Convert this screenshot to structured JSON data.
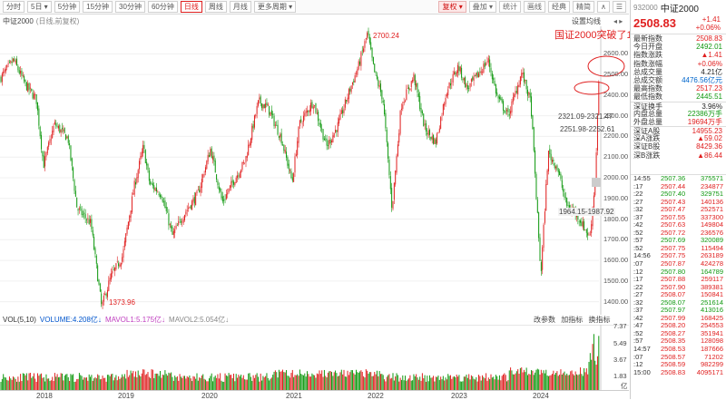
{
  "toolbar": {
    "left_buttons": [
      "分时",
      "5日 ▾",
      "5分钟",
      "15分钟",
      "30分钟",
      "60分钟",
      "日线",
      "周线",
      "月线",
      "更多周期 ▾"
    ],
    "active_index": 6,
    "right_buttons": [
      "复权 ▾",
      "叠加 ▾",
      "统计",
      "画线",
      "经典",
      "精简",
      "∧",
      "☰"
    ]
  },
  "chart_header": {
    "name": "中证2000",
    "mode": "(日线,前复权)",
    "settings": "设置均线",
    "arrows": "◂ ▸"
  },
  "annotation": "国证2000突破了10月上旬的高点",
  "price_labels": {
    "high": "2700.24",
    "low": "1373.96",
    "range1": "2321.09-2321.47",
    "range2": "2251.98-2252.61",
    "range3": "1964.15-1987.92"
  },
  "y_axis": [
    "2600.00",
    "2500.00",
    "2400.00",
    "2300.00",
    "2200.00",
    "2100.00",
    "2000.00",
    "1900.00",
    "1800.00",
    "1700.00",
    "1600.00",
    "1500.00",
    "1400.00"
  ],
  "volume": {
    "label": "VOL(5,10)",
    "volume": "VOLUME:4.208亿↓",
    "ma1": "MAVOL1:5.175亿↓",
    "ma2": "MAVOL2:5.054亿↓",
    "tools": [
      "改参数",
      "加指标",
      "换指标"
    ],
    "y_axis": [
      "7.37",
      "5.49",
      "3.67",
      "1.83"
    ],
    "unit": "亿"
  },
  "x_axis": [
    "2018",
    "2019",
    "2020",
    "2021",
    "2022",
    "2023",
    "2024"
  ],
  "quote": {
    "code": "932000",
    "name": "中证2000",
    "price": "2508.83",
    "change": "+1.41",
    "change_pct": "+0.06%",
    "fields": [
      {
        "k": "最新指数",
        "v": "2508.83",
        "c": "red"
      },
      {
        "k": "今日开盘",
        "v": "2492.01",
        "c": "green"
      },
      {
        "k": "指数涨跌",
        "v": "▲1.41",
        "c": "red"
      },
      {
        "k": "指数涨幅",
        "v": "+0.06%",
        "c": "red"
      },
      {
        "k": "总成交量",
        "v": "4.21亿",
        "c": "dark"
      },
      {
        "k": "总成交额",
        "v": "4476.56亿元",
        "c": "blue"
      },
      {
        "k": "最高指数",
        "v": "2517.23",
        "c": "red"
      },
      {
        "k": "最低指数",
        "v": "2445.51",
        "c": "green"
      },
      {
        "k": "深证换手",
        "v": "3.96%",
        "c": "dark"
      },
      {
        "k": "内盘总量",
        "v": "22386万手",
        "c": "green"
      },
      {
        "k": "外盘总量",
        "v": "19694万手",
        "c": "red"
      },
      {
        "k": "深证A股",
        "v": "14955.23",
        "c": "red"
      },
      {
        "k": "深A涨跌",
        "v": "▲59.02",
        "c": "red"
      },
      {
        "k": "深证B股",
        "v": "8429.36",
        "c": "red"
      },
      {
        "k": "深B涨跌",
        "v": "▲86.44",
        "c": "red"
      }
    ]
  },
  "trades": [
    {
      "t": "14:55",
      "p": "2507.36",
      "q": "375571",
      "c": "green"
    },
    {
      "t": ":17",
      "p": "2507.44",
      "q": "234877",
      "c": "red"
    },
    {
      "t": ":22",
      "p": "2507.40",
      "q": "329751",
      "c": "green"
    },
    {
      "t": ":27",
      "p": "2507.43",
      "q": "140136",
      "c": "red"
    },
    {
      "t": ":32",
      "p": "2507.47",
      "q": "252571",
      "c": "red"
    },
    {
      "t": ":37",
      "p": "2507.55",
      "q": "337300",
      "c": "red"
    },
    {
      "t": ":42",
      "p": "2507.63",
      "q": "149804",
      "c": "red"
    },
    {
      "t": ":52",
      "p": "2507.72",
      "q": "236576",
      "c": "red"
    },
    {
      "t": ":57",
      "p": "2507.69",
      "q": "320089",
      "c": "green"
    },
    {
      "t": ":52",
      "p": "2507.75",
      "q": "115494",
      "c": "red"
    },
    {
      "t": "14:56",
      "p": "2507.75",
      "q": "263189",
      "c": "red"
    },
    {
      "t": ":07",
      "p": "2507.87",
      "q": "424278",
      "c": "red"
    },
    {
      "t": ":12",
      "p": "2507.80",
      "q": "164789",
      "c": "green"
    },
    {
      "t": ":17",
      "p": "2507.88",
      "q": "259117",
      "c": "red"
    },
    {
      "t": ":22",
      "p": "2507.90",
      "q": "389381",
      "c": "red"
    },
    {
      "t": ":27",
      "p": "2508.07",
      "q": "150841",
      "c": "red"
    },
    {
      "t": ":32",
      "p": "2508.07",
      "q": "251614",
      "c": "green"
    },
    {
      "t": ":37",
      "p": "2507.97",
      "q": "413016",
      "c": "green"
    },
    {
      "t": ":42",
      "p": "2507.99",
      "q": "168425",
      "c": "red"
    },
    {
      "t": ":47",
      "p": "2508.20",
      "q": "254553",
      "c": "red"
    },
    {
      "t": ":52",
      "p": "2508.27",
      "q": "351941",
      "c": "red"
    },
    {
      "t": ":57",
      "p": "2508.35",
      "q": "128098",
      "c": "red"
    },
    {
      "t": "14:57",
      "p": "2508.53",
      "q": "187666",
      "c": "red"
    },
    {
      "t": ":07",
      "p": "2508.57",
      "q": "71202",
      "c": "red"
    },
    {
      "t": ":12",
      "p": "2508.59",
      "q": "982299",
      "c": "red"
    },
    {
      "t": "15:00",
      "p": "2508.83",
      "q": "4095171",
      "c": "red"
    }
  ],
  "colors": {
    "up": "#e02020",
    "down": "#119911",
    "accent": "#e02020"
  }
}
